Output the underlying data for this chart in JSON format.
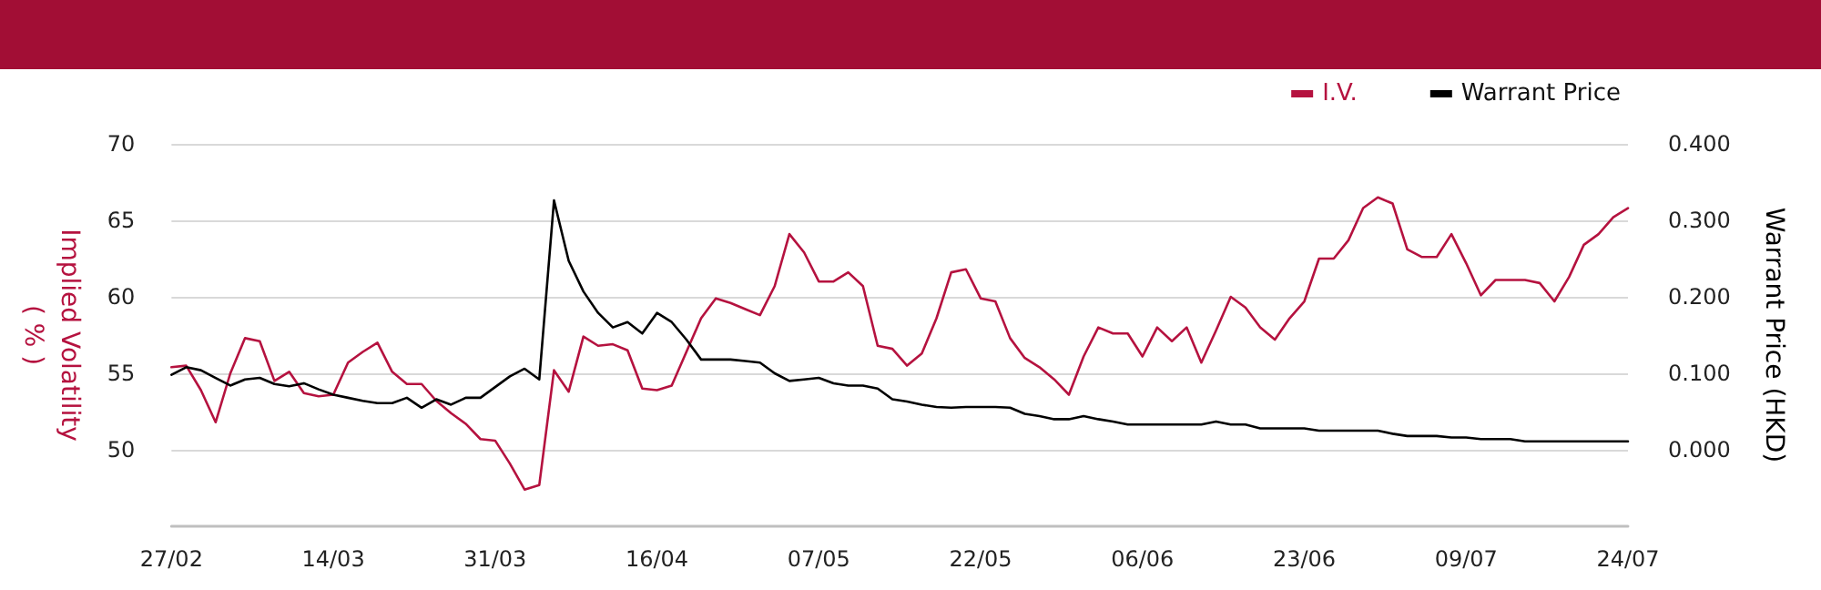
{
  "chart_data": {
    "type": "line",
    "ylabel": "Implied Volatility\n( % )",
    "y2label": "Warrant Price (HKD)",
    "categories": [
      "27/02",
      null,
      null,
      null,
      null,
      null,
      null,
      null,
      null,
      null,
      null,
      "14/03",
      null,
      null,
      null,
      null,
      null,
      null,
      null,
      null,
      null,
      null,
      "31/03",
      null,
      null,
      null,
      null,
      null,
      null,
      null,
      null,
      null,
      null,
      "16/04",
      null,
      null,
      null,
      null,
      null,
      null,
      null,
      null,
      null,
      null,
      "07/05",
      null,
      null,
      null,
      null,
      null,
      null,
      null,
      null,
      null,
      null,
      "22/05",
      null,
      null,
      null,
      null,
      null,
      null,
      null,
      null,
      null,
      null,
      "06/06",
      null,
      null,
      null,
      null,
      null,
      null,
      null,
      null,
      null,
      null,
      "23/06",
      null,
      null,
      null,
      null,
      null,
      null,
      null,
      null,
      null,
      null,
      "09/07",
      null,
      null,
      null,
      null,
      null,
      null,
      null,
      null,
      null,
      null,
      "24/07"
    ],
    "series": [
      {
        "name": "I.V.",
        "color": "#b5123f",
        "values": [
          55.4,
          55.5,
          53.9,
          51.8,
          55.0,
          57.3,
          57.1,
          54.5,
          55.1,
          53.7,
          53.5,
          53.6,
          55.7,
          56.4,
          57.0,
          55.1,
          54.3,
          54.3,
          53.2,
          52.4,
          51.7,
          50.7,
          50.6,
          49.1,
          47.4,
          47.7,
          55.2,
          53.8,
          57.4,
          56.8,
          56.9,
          56.5,
          54.0,
          53.9,
          54.2,
          56.4,
          58.6,
          59.9,
          59.6,
          59.2,
          58.8,
          60.7,
          64.1,
          62.9,
          61.0,
          61.0,
          61.6,
          60.7,
          56.8,
          56.6,
          55.5,
          56.3,
          58.6,
          61.6,
          61.8,
          59.9,
          59.7,
          57.3,
          56.0,
          55.4,
          54.6,
          53.6,
          56.1,
          58.0,
          57.6,
          57.6,
          56.1,
          58.0,
          57.1,
          58.0,
          55.7,
          57.8,
          60.0,
          59.3,
          58.0,
          57.2,
          58.6,
          59.7,
          62.5,
          62.5,
          63.7,
          65.8,
          66.5,
          66.1,
          63.1,
          62.6,
          62.6,
          64.1,
          62.2,
          60.1,
          61.1,
          61.1,
          61.1,
          60.9,
          59.7,
          61.3,
          63.4,
          64.1,
          65.2,
          65.8
        ]
      },
      {
        "name": "Warrant Price",
        "color": "#000000",
        "axis": "y2",
        "values": [
          0.098,
          0.108,
          0.104,
          0.094,
          0.084,
          0.092,
          0.094,
          0.086,
          0.083,
          0.087,
          0.079,
          0.072,
          0.068,
          0.064,
          0.061,
          0.061,
          0.068,
          0.055,
          0.066,
          0.059,
          0.068,
          0.068,
          0.082,
          0.096,
          0.106,
          0.092,
          0.326,
          0.247,
          0.207,
          0.179,
          0.16,
          0.167,
          0.152,
          0.179,
          0.167,
          0.144,
          0.118,
          0.118,
          0.118,
          0.116,
          0.114,
          0.1,
          0.09,
          0.092,
          0.094,
          0.087,
          0.084,
          0.084,
          0.08,
          0.066,
          0.063,
          0.059,
          0.056,
          0.055,
          0.056,
          0.056,
          0.056,
          0.055,
          0.047,
          0.044,
          0.04,
          0.04,
          0.044,
          0.04,
          0.037,
          0.033,
          0.033,
          0.033,
          0.033,
          0.033,
          0.033,
          0.037,
          0.033,
          0.033,
          0.028,
          0.028,
          0.028,
          0.028,
          0.025,
          0.025,
          0.025,
          0.025,
          0.025,
          0.021,
          0.018,
          0.018,
          0.018,
          0.016,
          0.016,
          0.014,
          0.014,
          0.014,
          0.011,
          0.011,
          0.011,
          0.011,
          0.011,
          0.011,
          0.011,
          0.011
        ]
      }
    ],
    "ylim": [
      45,
      70
    ],
    "yticks": [
      50,
      55,
      60,
      65,
      70
    ],
    "y2lim": [
      -0.1,
      0.4
    ],
    "y2ticks": [
      {
        "value": 0,
        "label": "0.000"
      },
      {
        "value": 0.1,
        "label": "0.100"
      },
      {
        "value": 0.2,
        "label": "0.200"
      },
      {
        "value": 0.3,
        "label": "0.300"
      },
      {
        "value": 0.4,
        "label": "0.400"
      }
    ],
    "grid": "y",
    "legend": "top right",
    "marker": "none",
    "line_style": "solid"
  }
}
